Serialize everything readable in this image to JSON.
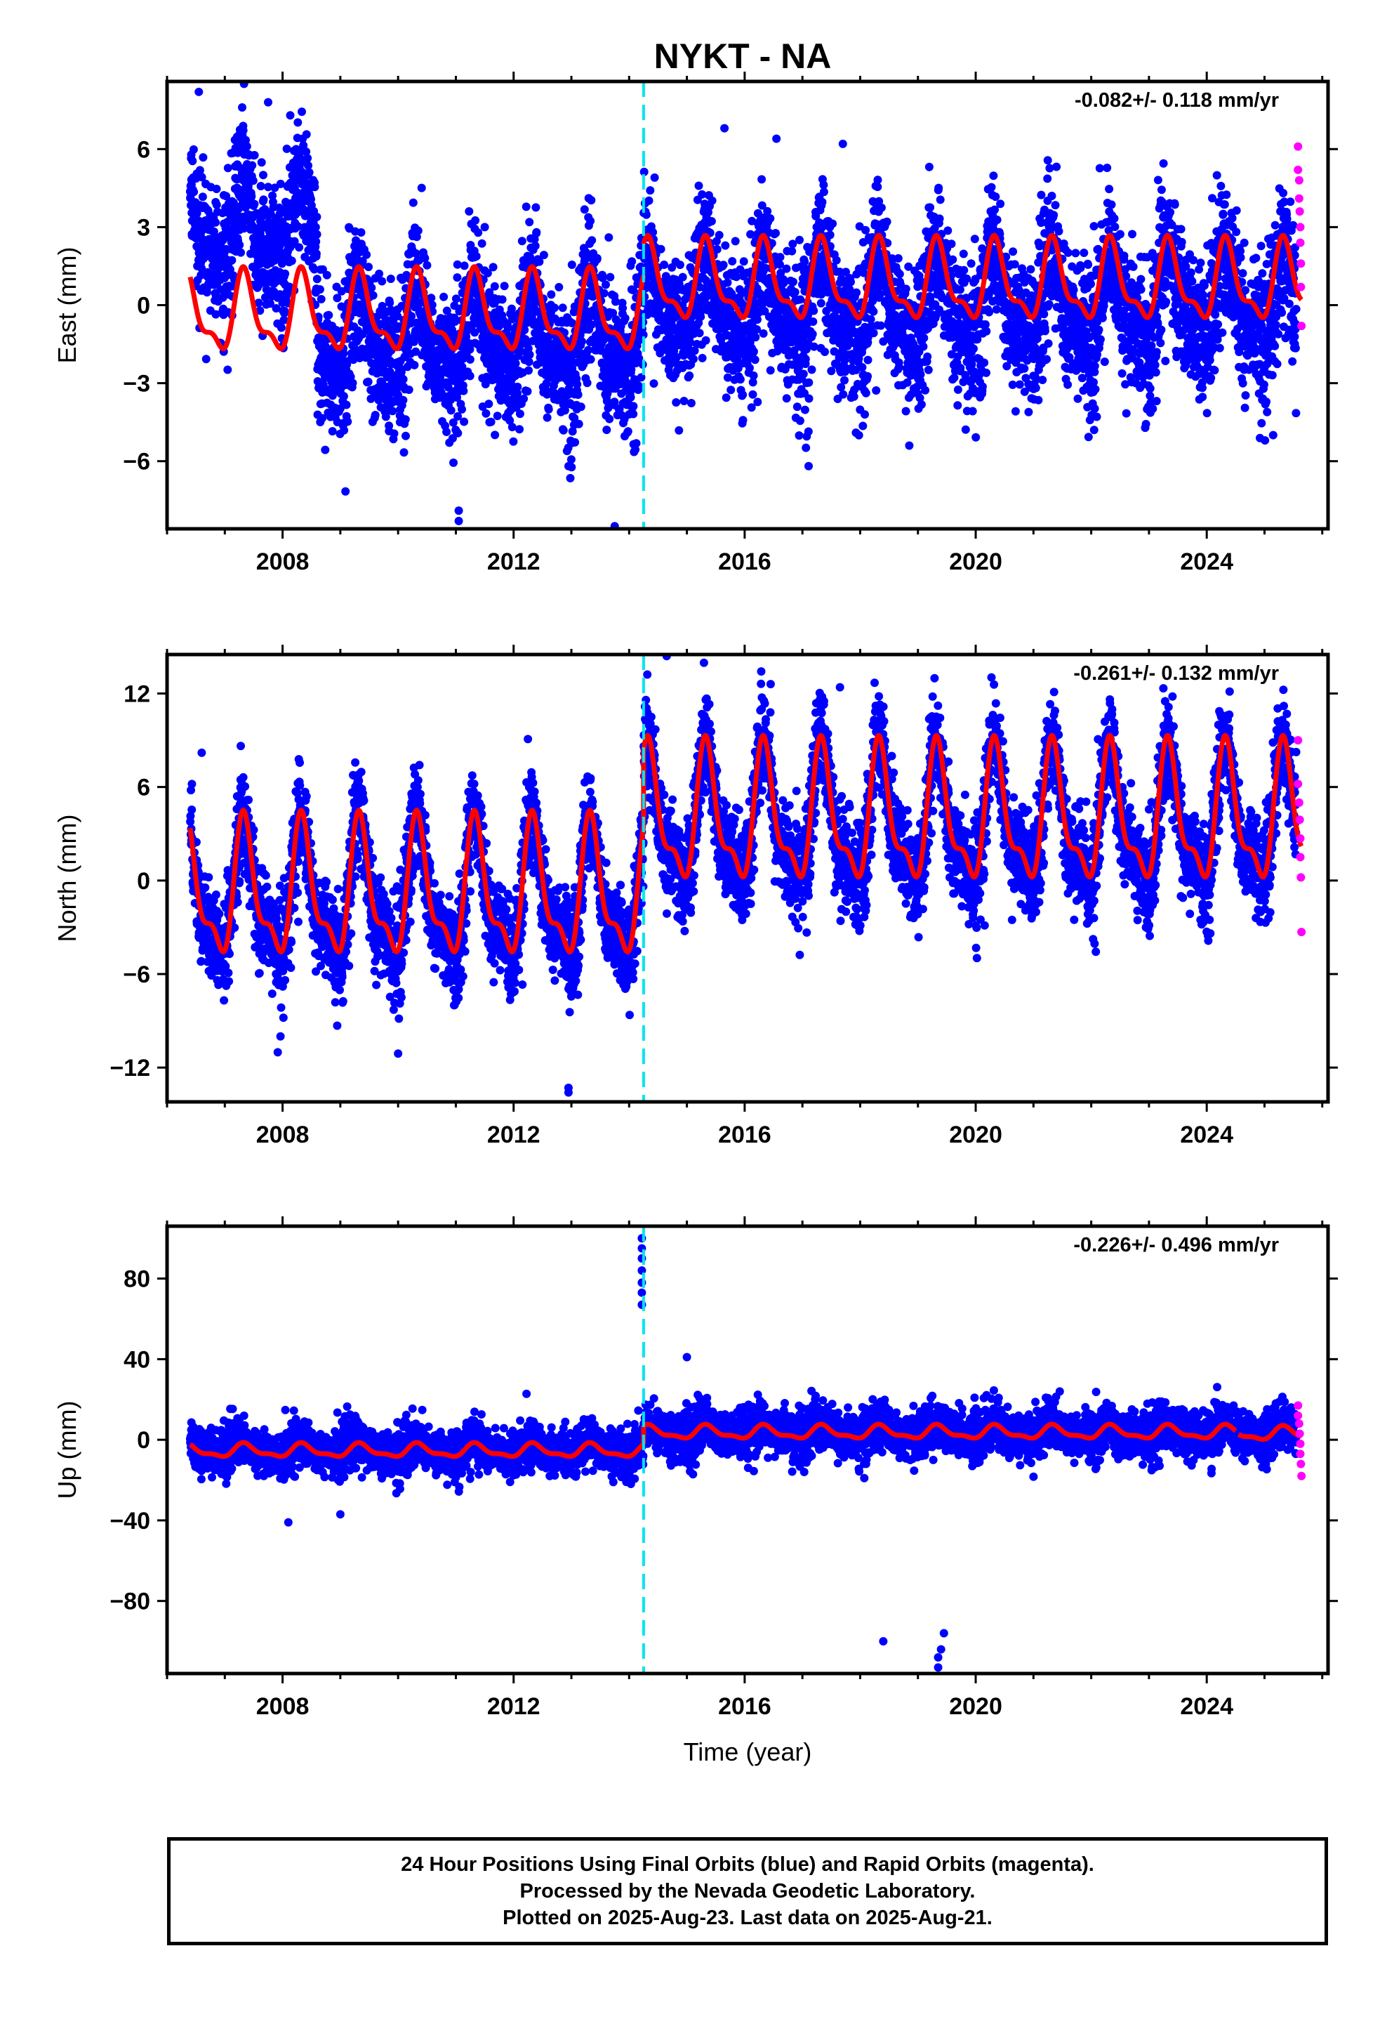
{
  "title": "NYKT - NA",
  "colors": {
    "final_orbits": "#0000ff",
    "rapid_orbits": "#ff00ff",
    "model_fit": "#ff0000",
    "equipment_change": "#00e5ee",
    "frame": "#000000"
  },
  "chart_data": [
    {
      "type": "scatter",
      "ylabel": "East (mm)",
      "xlabel": "",
      "rate_text": "-0.082+/- 0.118 mm/yr",
      "xlim": [
        2006.0,
        2026.1
      ],
      "ylim": [
        -8.6,
        8.6
      ],
      "x_ticks": [
        2008,
        2012,
        2016,
        2020,
        2024
      ],
      "x_tick_labels": [
        "2008",
        "2012",
        "2016",
        "2020",
        "2024"
      ],
      "y_ticks": [
        -6,
        -3,
        0,
        3,
        6
      ],
      "y_tick_labels": [
        "−6",
        "−3",
        "0",
        "3",
        "6"
      ],
      "offset_epoch": 2014.25,
      "data_start": 2006.4,
      "rapid_start": 2025.55,
      "data_end": 2025.64,
      "series": [
        {
          "kind": "final",
          "noise_mm": 1.2,
          "amplitude_mm": 1.7,
          "segments": [
            {
              "from": 2006.4,
              "to": 2008.6,
              "level_mm": 2.8
            },
            {
              "from": 2008.6,
              "to": 2014.25,
              "level_mm": -1.3
            },
            {
              "from": 2014.25,
              "to": 2025.55,
              "level_mm": 0.0
            }
          ],
          "outliers": [
            [
              2006.55,
              8.2
            ],
            [
              2007.75,
              7.8
            ],
            [
              2011.05,
              -7.9
            ],
            [
              2011.05,
              -8.3
            ],
            [
              2013.75,
              -8.5
            ],
            [
              2015.65,
              6.8
            ],
            [
              2016.55,
              6.4
            ],
            [
              2017.7,
              6.2
            ],
            [
              2018.85,
              -5.4
            ],
            [
              2022.05,
              -4.8
            ],
            [
              2025.15,
              -5.0
            ]
          ]
        },
        {
          "kind": "rapid",
          "values": [
            [
              2025.58,
              6.1
            ],
            [
              2025.58,
              5.2
            ],
            [
              2025.6,
              4.8
            ],
            [
              2025.6,
              4.1
            ],
            [
              2025.61,
              3.6
            ],
            [
              2025.62,
              3.0
            ],
            [
              2025.62,
              2.4
            ],
            [
              2025.63,
              1.6
            ],
            [
              2025.63,
              0.7
            ],
            [
              2025.64,
              -0.8
            ]
          ]
        },
        {
          "kind": "model",
          "seasonal_amp_mm": 1.6,
          "segments": [
            {
              "from": 2006.4,
              "to": 2008.6,
              "level_mm": -0.4
            },
            {
              "from": 2008.6,
              "to": 2014.25,
              "level_mm": -0.4
            },
            {
              "from": 2014.25,
              "to": 2025.64,
              "level_mm": 0.8
            }
          ]
        }
      ]
    },
    {
      "type": "scatter",
      "ylabel": "North (mm)",
      "xlabel": "",
      "rate_text": "-0.261+/- 0.132 mm/yr",
      "xlim": [
        2006.0,
        2026.1
      ],
      "ylim": [
        -14.2,
        14.5
      ],
      "x_ticks": [
        2008,
        2012,
        2016,
        2020,
        2024
      ],
      "x_tick_labels": [
        "2008",
        "2012",
        "2016",
        "2020",
        "2024"
      ],
      "y_ticks": [
        -12,
        -6,
        0,
        6,
        12
      ],
      "y_tick_labels": [
        "−12",
        "−6",
        "0",
        "6",
        "12"
      ],
      "offset_epoch": 2014.25,
      "data_start": 2006.4,
      "rapid_start": 2025.55,
      "data_end": 2025.64,
      "series": [
        {
          "kind": "final",
          "noise_mm": 1.4,
          "amplitude_mm": 4.6,
          "segments": [
            {
              "from": 2006.4,
              "to": 2014.25,
              "level_mm": -1.2
            },
            {
              "from": 2014.25,
              "to": 2025.55,
              "level_mm": 3.6
            }
          ],
          "outliers": [
            [
              2006.6,
              8.2
            ],
            [
              2012.95,
              -13.3
            ],
            [
              2012.95,
              -13.6
            ],
            [
              2014.65,
              14.4
            ],
            [
              2016.45,
              12.6
            ],
            [
              2017.65,
              12.4
            ],
            [
              2010.0,
              -11.1
            ]
          ]
        },
        {
          "kind": "rapid",
          "values": [
            [
              2025.58,
              9.0
            ],
            [
              2025.58,
              6.2
            ],
            [
              2025.6,
              5.0
            ],
            [
              2025.61,
              3.9
            ],
            [
              2025.62,
              2.7
            ],
            [
              2025.62,
              1.5
            ],
            [
              2025.63,
              0.2
            ],
            [
              2025.64,
              -3.3
            ]
          ]
        },
        {
          "kind": "model",
          "seasonal_amp_mm": 4.6,
          "segments": [
            {
              "from": 2006.4,
              "to": 2014.25,
              "level_mm": -0.9
            },
            {
              "from": 2014.25,
              "to": 2025.64,
              "level_mm": 3.9
            }
          ]
        }
      ]
    },
    {
      "type": "scatter",
      "ylabel": "Up (mm)",
      "xlabel": "Time (year)",
      "rate_text": "-0.226+/- 0.496 mm/yr",
      "xlim": [
        2006.0,
        2026.1
      ],
      "ylim": [
        -116,
        106
      ],
      "x_ticks": [
        2008,
        2012,
        2016,
        2020,
        2024
      ],
      "x_tick_labels": [
        "2008",
        "2012",
        "2016",
        "2020",
        "2024"
      ],
      "y_ticks": [
        -80,
        -40,
        0,
        40,
        80
      ],
      "y_tick_labels": [
        "−80",
        "−40",
        "0",
        "40",
        "80"
      ],
      "offset_epoch": 2014.25,
      "data_start": 2006.4,
      "rapid_start": 2025.55,
      "data_end": 2025.64,
      "series": [
        {
          "kind": "final",
          "noise_mm": 5.0,
          "amplitude_mm": 3.5,
          "segments": [
            {
              "from": 2006.4,
              "to": 2014.25,
              "level_mm": -5.0
            },
            {
              "from": 2014.25,
              "to": 2025.55,
              "level_mm": 3.5
            }
          ],
          "outliers": [
            [
              2014.22,
              100
            ],
            [
              2014.22,
              95
            ],
            [
              2014.22,
              90
            ],
            [
              2014.22,
              84
            ],
            [
              2014.22,
              78
            ],
            [
              2014.22,
              73
            ],
            [
              2014.22,
              67
            ],
            [
              2015.0,
              41
            ],
            [
              2008.1,
              -41
            ],
            [
              2009.0,
              -37
            ],
            [
              2018.4,
              -100
            ],
            [
              2019.35,
              -108
            ],
            [
              2019.4,
              -104
            ],
            [
              2019.45,
              -96
            ],
            [
              2019.35,
              -113
            ]
          ]
        },
        {
          "kind": "rapid",
          "values": [
            [
              2025.58,
              17
            ],
            [
              2025.58,
              12
            ],
            [
              2025.6,
              8
            ],
            [
              2025.61,
              3
            ],
            [
              2025.62,
              -2
            ],
            [
              2025.62,
              -7
            ],
            [
              2025.63,
              -12
            ],
            [
              2025.64,
              -18
            ]
          ]
        },
        {
          "kind": "model",
          "seasonal_amp_mm": 3.5,
          "segments": [
            {
              "from": 2006.4,
              "to": 2014.25,
              "level_mm": -5.5
            },
            {
              "from": 2014.25,
              "to": 2024.5,
              "level_mm": 3.6
            },
            {
              "from": 2024.55,
              "to": 2025.64,
              "level_mm": 3.0
            }
          ]
        }
      ]
    }
  ],
  "footer": {
    "line1": "24 Hour Positions Using Final Orbits (blue) and Rapid Orbits (magenta).",
    "line2": "Processed by the Nevada Geodetic Laboratory.",
    "line3": "Plotted on 2025-Aug-23. Last data on 2025-Aug-21."
  }
}
